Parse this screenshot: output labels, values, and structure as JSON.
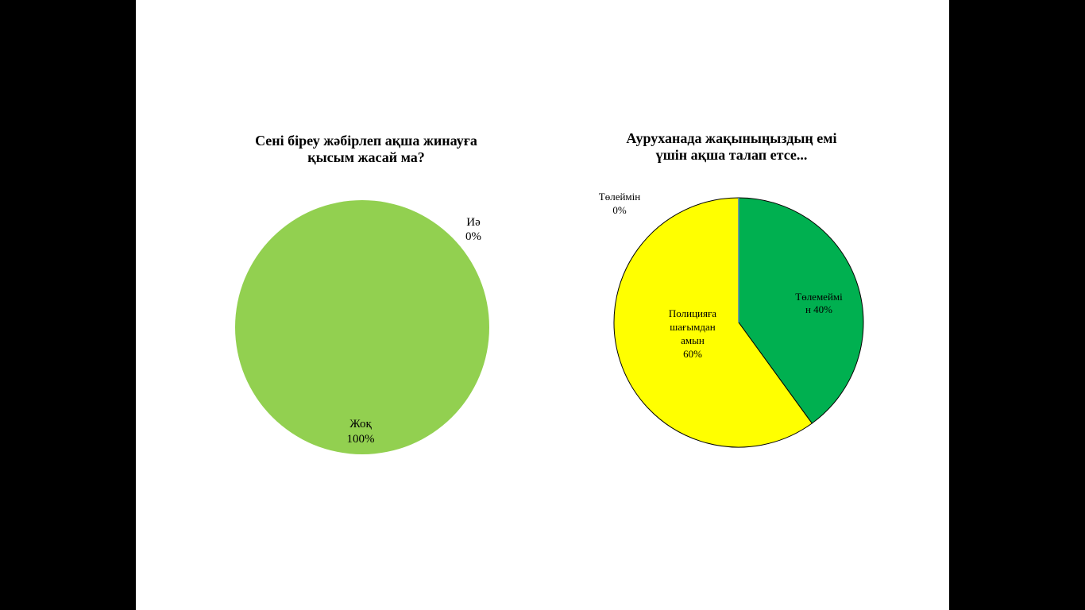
{
  "chart_data": [
    {
      "type": "pie",
      "title": "Сені біреу жәбірлеп ақша жинауға\nқысым жасай ма?",
      "slices": [
        {
          "label": "Иә",
          "value_label": "0%",
          "value": 0,
          "color": "#c0504d"
        },
        {
          "label": "Жоқ",
          "value_label": "100%",
          "value": 100,
          "color": "#92d050"
        }
      ]
    },
    {
      "type": "pie",
      "title": "Ауруханада жақыныңыздың емі\nүшін ақша талап етсе...",
      "slices": [
        {
          "label": "Төлемеймін",
          "value_label": "40%",
          "value": 40,
          "color": "#00b050"
        },
        {
          "label": "Полицияға шағымданамын",
          "value_label": "60%",
          "value": 60,
          "color": "#ffff00"
        },
        {
          "label": "Төлеймін",
          "value_label": "0%",
          "value": 0,
          "color": "#4f81bd"
        }
      ]
    }
  ]
}
